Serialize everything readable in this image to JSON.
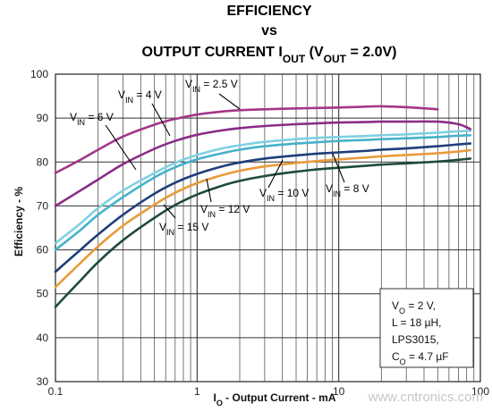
{
  "title": {
    "line1": "EFFICIENCY",
    "line2": "vs",
    "line3": "OUTPUT CURRENT I_OUT (V_OUT = 2.0V)"
  },
  "chart_data": {
    "type": "line",
    "title": "EFFICIENCY vs OUTPUT CURRENT I_OUT (V_OUT = 2.0V)",
    "xlabel": "I_O - Output Current - mA",
    "ylabel": "Efficiency - %",
    "xscale": "log",
    "xlim": [
      0.1,
      100
    ],
    "ylim": [
      30,
      100
    ],
    "grid": true,
    "x_ticks": [
      "0.1",
      "1",
      "10",
      "100"
    ],
    "y_ticks": [
      "30",
      "40",
      "50",
      "60",
      "70",
      "80",
      "90",
      "100"
    ],
    "x": [
      0.1,
      0.15,
      0.2,
      0.3,
      0.5,
      0.7,
      1,
      1.5,
      2,
      3,
      5,
      7,
      10,
      15,
      20,
      30,
      50,
      70,
      85
    ],
    "series": [
      {
        "name": "V_IN = 2.5 V",
        "color": "#a3368a",
        "values": [
          77.5,
          80.5,
          82.8,
          85.8,
          88.5,
          89.8,
          90.8,
          91.5,
          91.8,
          92.0,
          92.2,
          92.3,
          92.4,
          92.6,
          92.7,
          92.5,
          92.0,
          null,
          null
        ]
      },
      {
        "name": "V_IN = 4 V",
        "color": "#8a2c86",
        "values": [
          70.0,
          73.5,
          76.0,
          79.5,
          83.0,
          84.8,
          86.2,
          87.2,
          87.7,
          88.2,
          88.6,
          88.8,
          89.0,
          89.1,
          89.2,
          89.2,
          89.2,
          88.6,
          87.5
        ]
      },
      {
        "name": "V_IN = 6 V",
        "color": "#7fd0e3",
        "values": [
          61.5,
          66.0,
          69.5,
          73.5,
          77.5,
          79.8,
          81.6,
          83.1,
          83.8,
          84.6,
          85.2,
          85.5,
          85.7,
          85.9,
          86.1,
          86.3,
          86.7,
          87.0,
          87.1
        ]
      },
      {
        "name": "V_IN = 8 V",
        "color": "#47b1cc",
        "values": [
          60.0,
          64.5,
          68.0,
          72.0,
          76.5,
          78.8,
          80.6,
          82.0,
          82.8,
          83.6,
          84.2,
          84.5,
          84.8,
          85.0,
          85.2,
          85.4,
          85.7,
          86.0,
          86.1
        ]
      },
      {
        "name": "V_IN = 10 V",
        "color": "#1f3e7a",
        "values": [
          55.0,
          60.0,
          63.5,
          68.0,
          72.8,
          75.3,
          77.3,
          79.0,
          79.9,
          80.8,
          81.5,
          81.9,
          82.2,
          82.5,
          82.8,
          83.1,
          83.6,
          84.0,
          84.2
        ]
      },
      {
        "name": "V_IN = 12 V",
        "color": "#e89b3c",
        "values": [
          51.5,
          57.0,
          60.8,
          65.5,
          70.3,
          73.0,
          75.2,
          77.0,
          78.0,
          79.0,
          79.8,
          80.2,
          80.6,
          81.0,
          81.3,
          81.6,
          82.0,
          82.4,
          82.7
        ]
      },
      {
        "name": "V_IN = 15 V",
        "color": "#1d4a3c",
        "values": [
          47.0,
          53.0,
          57.2,
          62.2,
          67.3,
          70.2,
          72.6,
          74.6,
          75.7,
          76.8,
          77.8,
          78.3,
          78.7,
          79.1,
          79.4,
          79.7,
          80.1,
          80.5,
          80.8
        ]
      }
    ],
    "annotations": [
      {
        "text": "V_IN = 2.5 V"
      },
      {
        "text": "V_IN = 4 V"
      },
      {
        "text": "V_IN = 6 V"
      },
      {
        "text": "V_IN = 10 V"
      },
      {
        "text": "V_IN = 8 V"
      },
      {
        "text": "V_IN = 12 V"
      },
      {
        "text": "V_IN = 15 V"
      }
    ],
    "note_lines": [
      "V_O = 2 V,",
      "L = 18 µH,",
      "LPS3015,",
      "C_O = 4.7 µF"
    ]
  },
  "watermark": "www.cntronics.com"
}
